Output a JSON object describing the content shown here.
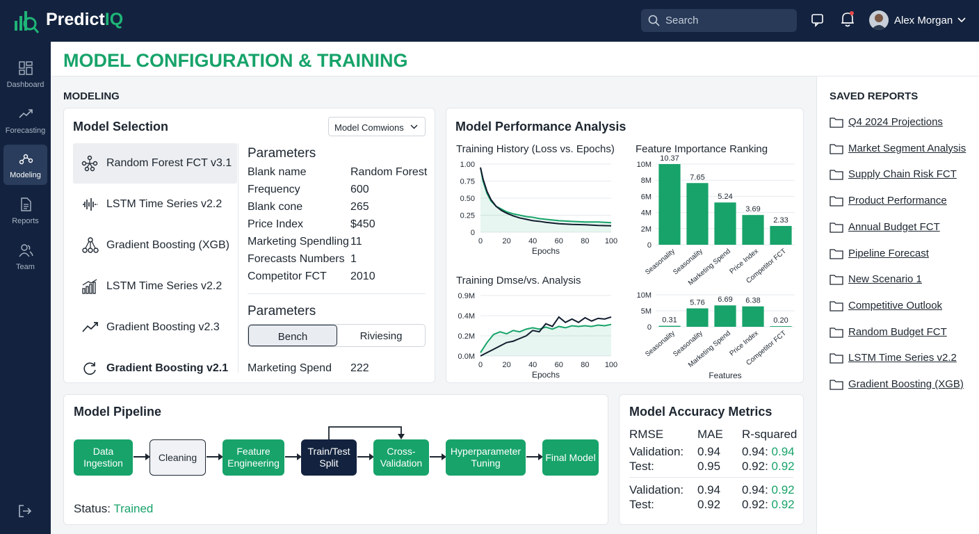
{
  "app": {
    "brand_a": "Predict",
    "brand_b": "IQ",
    "search_placeholder": "Search",
    "user_name": "Alex Morgan",
    "accent": "#17a36a",
    "navy": "#13233f"
  },
  "nav": [
    {
      "label": "Dashboard",
      "icon": "dashboard-icon"
    },
    {
      "label": "Forecasting",
      "icon": "trend-icon"
    },
    {
      "label": "Modeling",
      "icon": "modeling-icon",
      "active": true
    },
    {
      "label": "Reports",
      "icon": "document-icon"
    },
    {
      "label": "Team",
      "icon": "team-icon"
    }
  ],
  "page": {
    "title": "MODEL CONFIGURATION & TRAINING",
    "section": "MODELING"
  },
  "model_selection": {
    "title": "Model Selection",
    "dropdown": "Model Comwions",
    "models": [
      {
        "label": "Random Forest FCT v3.1",
        "icon": "tree-network-icon",
        "selected": true
      },
      {
        "label": "LSTM Time Series v2.2",
        "icon": "waveform-icon"
      },
      {
        "label": "Gradient Boosting (XGB)",
        "icon": "hierarchy-icon"
      },
      {
        "label": "LSTM Time Series v2.2",
        "icon": "bar-trend-icon"
      },
      {
        "label": "Gradient Boosting v2.3",
        "icon": "line-trend-icon"
      },
      {
        "label": "Gradient Boosting v2.1",
        "icon": "refresh-icon"
      }
    ],
    "params_title": "Parameters",
    "params": [
      {
        "k": "Blank name",
        "v": "Random Forest"
      },
      {
        "k": "Frequency",
        "v": "600"
      },
      {
        "k": "Blank cone",
        "v": "265"
      },
      {
        "k": "Price Index",
        "v": "$450"
      },
      {
        "k": "Marketing Spendling",
        "v": "11"
      },
      {
        "k": "Forecasts Numbers",
        "v": "1"
      },
      {
        "k": "Competitor FCT",
        "v": "2010"
      }
    ],
    "params2_title": "Parameters",
    "toggle": [
      "Bench",
      "Riviesing"
    ],
    "extra": {
      "k": "Marketing Spend",
      "v": "222"
    }
  },
  "performance": {
    "title": "Model Performance Analysis"
  },
  "chart_data": [
    {
      "type": "line",
      "title": "Training History (Loss vs. Epochs)",
      "xlabel": "Epochs",
      "ylabel": "",
      "ylim": [
        0,
        1.0
      ],
      "x_ticks": [
        0,
        20,
        40,
        60,
        80,
        100
      ],
      "y_ticks": [
        "0",
        "0.25",
        "0.50",
        "0.75",
        "1.00"
      ],
      "x": [
        0,
        2,
        5,
        8,
        12,
        16,
        20,
        25,
        30,
        35,
        40,
        45,
        50,
        55,
        60,
        70,
        80,
        90,
        100
      ],
      "series": [
        {
          "color": "#111c2e",
          "values": [
            0.95,
            0.78,
            0.6,
            0.48,
            0.38,
            0.32,
            0.28,
            0.24,
            0.21,
            0.19,
            0.17,
            0.16,
            0.145,
            0.135,
            0.125,
            0.115,
            0.11,
            0.1,
            0.095
          ]
        },
        {
          "color": "#17a36a",
          "values": [
            0.95,
            0.75,
            0.57,
            0.46,
            0.38,
            0.34,
            0.3,
            0.27,
            0.25,
            0.23,
            0.22,
            0.2,
            0.19,
            0.18,
            0.17,
            0.16,
            0.15,
            0.15,
            0.14
          ]
        }
      ]
    },
    {
      "type": "bar",
      "title": "Feature Importance Ranking",
      "xlabel": "",
      "ylabel": "",
      "ylim": [
        0,
        10000000
      ],
      "y_ticks": [
        "0",
        "2M",
        "4M",
        "6M",
        "8M",
        "10M"
      ],
      "categories": [
        "Seasonality",
        "Seasonality",
        "Marketing Spend",
        "Price Index",
        "Competitor FCT"
      ],
      "values": [
        10.37,
        7.65,
        5.24,
        3.69,
        2.33
      ],
      "labels": [
        "10.37",
        "7.65",
        "5.24",
        "3.69",
        "2.33"
      ]
    },
    {
      "type": "line",
      "title": "Training Dmse/vs. Analysis",
      "xlabel": "Epochs",
      "ylabel": "",
      "ylim": [
        0,
        0.9
      ],
      "x_ticks": [
        0,
        20,
        40,
        60,
        80,
        100
      ],
      "y_ticks": [
        "0.0M",
        "0.2M",
        "0.4M",
        "0.9M"
      ],
      "x": [
        0,
        5,
        10,
        15,
        20,
        25,
        30,
        35,
        40,
        45,
        50,
        55,
        60,
        65,
        70,
        75,
        80,
        85,
        90,
        95,
        100
      ],
      "series": [
        {
          "color": "#111c2e",
          "values": [
            0.0,
            0.05,
            0.1,
            0.15,
            0.2,
            0.22,
            0.26,
            0.3,
            0.38,
            0.36,
            0.48,
            0.44,
            0.58,
            0.5,
            0.55,
            0.5,
            0.57,
            0.52,
            0.56,
            0.55,
            0.58
          ]
        },
        {
          "color": "#17a36a",
          "values": [
            0.05,
            0.2,
            0.32,
            0.36,
            0.33,
            0.38,
            0.36,
            0.4,
            0.42,
            0.4,
            0.43,
            0.4,
            0.44,
            0.42,
            0.45,
            0.44,
            0.45,
            0.44,
            0.46,
            0.45,
            0.47
          ]
        }
      ]
    },
    {
      "type": "bar",
      "title": "",
      "xlabel": "Features",
      "ylabel": "",
      "ylim": [
        0,
        10000000
      ],
      "y_ticks": [
        "0",
        "5M",
        "10M"
      ],
      "categories": [
        "Seasonality",
        "Seasonality",
        "Marketing Spend",
        "Price Index",
        "Competitor FCT"
      ],
      "values": [
        0.31,
        5.76,
        6.69,
        6.38,
        0.2
      ],
      "labels": [
        "0.31",
        "5.76",
        "6.69",
        "6.38",
        "0.20"
      ]
    }
  ],
  "pipeline": {
    "title": "Model Pipeline",
    "steps": [
      "Data Ingestion",
      "Cleaning",
      "Feature Engineering",
      "Train/Test Split",
      "Cross-Validation",
      "Hyperparameter Tuning",
      "Final Model"
    ],
    "status_label": "Status:",
    "status_value": "Trained"
  },
  "metrics": {
    "title": "Model Accuracy Metrics",
    "headers": [
      "RMSE",
      "MAE",
      "R-squared"
    ],
    "group1": [
      {
        "label": "Validation:",
        "mae": "0.94",
        "r2a": "0.94:",
        "r2b": "0.94"
      },
      {
        "label": "Test:",
        "mae": "0.95",
        "r2a": "0.92:",
        "r2b": "0.92"
      }
    ],
    "group2": [
      {
        "label": "Validation:",
        "mae": "0.94",
        "r2a": "0.94:",
        "r2b": "0.92"
      },
      {
        "label": "Test:",
        "mae": "0.92",
        "r2a": "0.92:",
        "r2b": "0.92"
      }
    ]
  },
  "reports": {
    "title": "SAVED REPORTS",
    "items": [
      "Q4 2024 Projections",
      "Market Segment Analysis",
      "Supply Chain Risk FCT",
      "Product Performance",
      "Annual Budget FCT",
      "Pipeline Forecast",
      "New Scenario 1",
      "Competitive Outlook",
      "Random Budget FCT",
      "LSTM Time Series v2.2",
      "Gradient Boosting (XGB)"
    ]
  }
}
